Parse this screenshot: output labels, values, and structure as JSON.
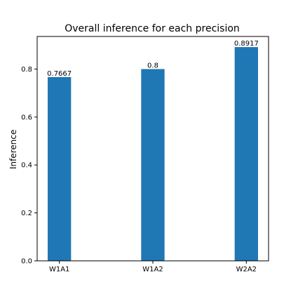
{
  "chart_data": {
    "type": "bar",
    "title": "Overall inference for each precision",
    "xlabel": "",
    "ylabel": "Inference",
    "categories": [
      "W1A1",
      "W1A2",
      "W2A2"
    ],
    "values": [
      0.7667,
      0.8,
      0.8917
    ],
    "data_labels": [
      "0.7667",
      "0.8",
      "0.8917"
    ],
    "ylim": [
      0,
      0.936
    ],
    "yticks": [
      0.0,
      0.2,
      0.4,
      0.6,
      0.8
    ],
    "ytick_labels": [
      "0.0",
      "0.2",
      "0.4",
      "0.6",
      "0.8"
    ],
    "bar_color": "#1f77b4",
    "grid": false,
    "legend": "none"
  }
}
